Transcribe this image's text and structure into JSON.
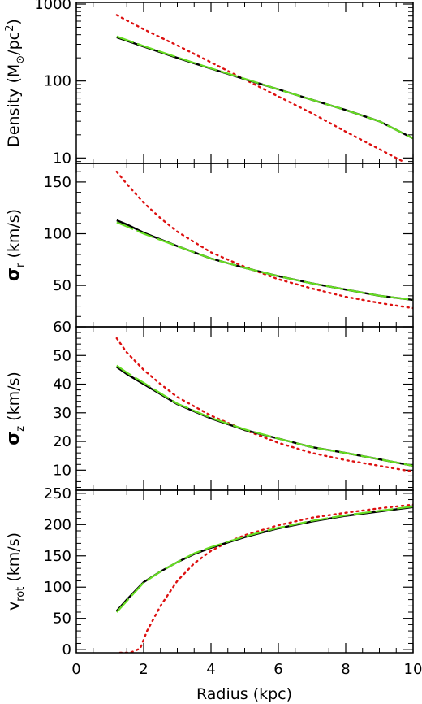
{
  "figure": {
    "xlabel": "Radius (kpc)",
    "xlim": [
      0,
      10
    ],
    "xticks": [
      0,
      2,
      4,
      6,
      8,
      10
    ],
    "colors": {
      "solid": "#000000",
      "dashed": "#66dd22",
      "dotted": "#dd1111"
    },
    "line_styles": {
      "solid": "solid",
      "dashed": "long-dash",
      "dotted": "dotted"
    }
  },
  "chart_data": [
    {
      "type": "line",
      "panel": "density",
      "ylabel": {
        "main": "Density (M",
        "sub": "⊙",
        "mid": "/pc",
        "sup": "2",
        "end": ")"
      },
      "yscale": "log",
      "ylim": [
        8.5,
        1050
      ],
      "yticks": [
        10,
        100,
        1000
      ],
      "series": [
        {
          "style": "solid",
          "x": [
            1.2,
            2,
            3,
            4,
            5,
            6,
            7,
            8,
            9,
            10
          ],
          "y": [
            370,
            280,
            200,
            145,
            106,
            78,
            57,
            42,
            30,
            18
          ]
        },
        {
          "style": "dashed",
          "x": [
            1.2,
            2,
            3,
            4,
            5,
            6,
            7,
            8,
            9,
            10
          ],
          "y": [
            380,
            285,
            203,
            146,
            107,
            78,
            57,
            42,
            30,
            18
          ]
        },
        {
          "style": "dotted",
          "x": [
            1.2,
            2,
            3,
            4,
            5,
            6,
            7,
            8,
            9,
            9.7
          ],
          "y": [
            720,
            470,
            290,
            175,
            105,
            63,
            38,
            22,
            13,
            9
          ]
        }
      ]
    },
    {
      "type": "line",
      "panel": "sigma_r",
      "ylabel": {
        "main": "σ",
        "sub": "r",
        "end": " (km/s)"
      },
      "ylim": [
        10,
        168
      ],
      "yticks": [
        50,
        100,
        150
      ],
      "series": [
        {
          "style": "solid",
          "x": [
            1.2,
            1.5,
            2,
            3,
            4,
            5,
            6,
            7,
            8,
            9,
            10
          ],
          "y": [
            113,
            109,
            101,
            88,
            76,
            67,
            59,
            52,
            46,
            40,
            36
          ]
        },
        {
          "style": "dashed",
          "x": [
            1.2,
            1.5,
            2,
            3,
            4,
            5,
            6,
            7,
            8,
            9,
            10
          ],
          "y": [
            111,
            107,
            100,
            88,
            76,
            67,
            59,
            52,
            46,
            40,
            36
          ]
        },
        {
          "style": "dotted",
          "x": [
            1.2,
            1.5,
            2,
            2.5,
            3,
            4,
            5,
            6,
            7,
            8,
            9,
            10
          ],
          "y": [
            160,
            148,
            130,
            115,
            102,
            82,
            68,
            56,
            47,
            39,
            33,
            28
          ]
        }
      ]
    },
    {
      "type": "line",
      "panel": "sigma_z",
      "ylabel": {
        "main": "σ",
        "sub": "z",
        "end": " (km/s)"
      },
      "ylim": [
        3,
        60
      ],
      "yticks": [
        10,
        20,
        30,
        40,
        50,
        60
      ],
      "series": [
        {
          "style": "solid",
          "x": [
            1.2,
            1.5,
            2,
            2.5,
            3,
            4,
            5,
            6,
            7,
            8,
            9,
            10
          ],
          "y": [
            46,
            43.5,
            40,
            36.5,
            33,
            28,
            24,
            21,
            18,
            16,
            13.8,
            11.5
          ]
        },
        {
          "style": "dashed",
          "x": [
            1.2,
            1.5,
            2,
            2.5,
            3,
            4,
            5,
            6,
            7,
            8,
            9,
            10
          ],
          "y": [
            46.5,
            44,
            40.5,
            36.8,
            33.2,
            28.2,
            24.2,
            21,
            18,
            16,
            13.8,
            11.5
          ]
        },
        {
          "style": "dotted",
          "x": [
            1.2,
            1.5,
            2,
            2.5,
            3,
            4,
            5,
            6,
            7,
            8,
            9,
            10
          ],
          "y": [
            56,
            51,
            45,
            40,
            35.5,
            29,
            24,
            19.5,
            16,
            13.5,
            11.5,
            9.5
          ]
        }
      ]
    },
    {
      "type": "line",
      "panel": "v_rot",
      "ylabel": {
        "main": "v",
        "sub": "rot",
        "end": " (km/s)"
      },
      "ylim": [
        -5,
        255
      ],
      "yticks": [
        0,
        50,
        100,
        150,
        200,
        250
      ],
      "series": [
        {
          "style": "solid",
          "x": [
            1.2,
            1.5,
            2,
            2.5,
            3,
            3.5,
            4,
            5,
            6,
            7,
            8,
            9,
            10
          ],
          "y": [
            62,
            80,
            108,
            125,
            140,
            153,
            163,
            180,
            194,
            205,
            214,
            221,
            228
          ]
        },
        {
          "style": "dashed",
          "x": [
            1.2,
            1.5,
            2,
            2.5,
            3,
            3.5,
            4,
            5,
            6,
            7,
            8,
            9,
            10
          ],
          "y": [
            60,
            78,
            107,
            125,
            140,
            154,
            164,
            181,
            195,
            206,
            215,
            222,
            229
          ]
        },
        {
          "style": "dotted",
          "x": [
            1.3,
            1.6,
            1.9,
            2.1,
            2.5,
            3,
            3.5,
            4,
            4.5,
            5,
            6,
            7,
            8,
            9,
            10
          ],
          "y": [
            -5,
            -5,
            2,
            30,
            70,
            110,
            138,
            158,
            172,
            183,
            199,
            211,
            219,
            226,
            232
          ]
        }
      ]
    }
  ]
}
